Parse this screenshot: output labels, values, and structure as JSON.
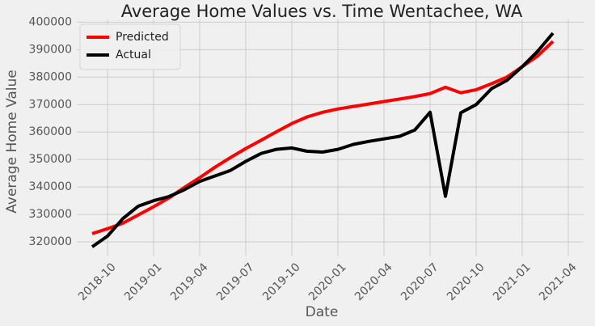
{
  "chart_data": {
    "type": "line",
    "title": "Average Home Values vs. Time Wentachee, WA",
    "xlabel": "Date",
    "ylabel": "Average Home Value",
    "x": [
      "2018-09",
      "2018-10",
      "2018-11",
      "2018-12",
      "2019-01",
      "2019-02",
      "2019-03",
      "2019-04",
      "2019-05",
      "2019-06",
      "2019-07",
      "2019-08",
      "2019-09",
      "2019-10",
      "2019-11",
      "2019-12",
      "2020-01",
      "2020-02",
      "2020-03",
      "2020-04",
      "2020-05",
      "2020-06",
      "2020-07",
      "2020-08",
      "2020-09",
      "2020-10",
      "2020-11",
      "2020-12",
      "2021-01",
      "2021-02",
      "2021-03"
    ],
    "series": [
      {
        "name": "Predicted",
        "color": "#ff0000",
        "values": [
          323000,
          324800,
          326800,
          329800,
          332800,
          336000,
          339800,
          343400,
          347200,
          350700,
          354000,
          357000,
          360100,
          363100,
          365500,
          367200,
          368400,
          369300,
          370200,
          371100,
          372000,
          372900,
          374000,
          376300,
          374300,
          375400,
          377600,
          380000,
          383800,
          387700,
          393000
        ]
      },
      {
        "name": "Actual",
        "color": "#000000",
        "values": [
          318200,
          322100,
          328500,
          333000,
          335000,
          336500,
          339000,
          342000,
          344000,
          346000,
          349300,
          352200,
          353700,
          354200,
          353000,
          352700,
          353700,
          355500,
          356600,
          357500,
          358400,
          360700,
          367200,
          336600,
          367000,
          370000,
          375800,
          378800,
          383800,
          389400,
          396000
        ]
      }
    ],
    "xlim": [
      "2018-08",
      "2021-05"
    ],
    "xticks": [
      "2018-10",
      "2019-01",
      "2019-04",
      "2019-07",
      "2019-10",
      "2020-01",
      "2020-04",
      "2020-07",
      "2020-10",
      "2021-01",
      "2021-04"
    ],
    "ylim": [
      315000,
      401000
    ],
    "yticks": [
      320000,
      330000,
      340000,
      350000,
      360000,
      370000,
      380000,
      390000,
      400000
    ],
    "grid": true,
    "legend": "upper left"
  }
}
